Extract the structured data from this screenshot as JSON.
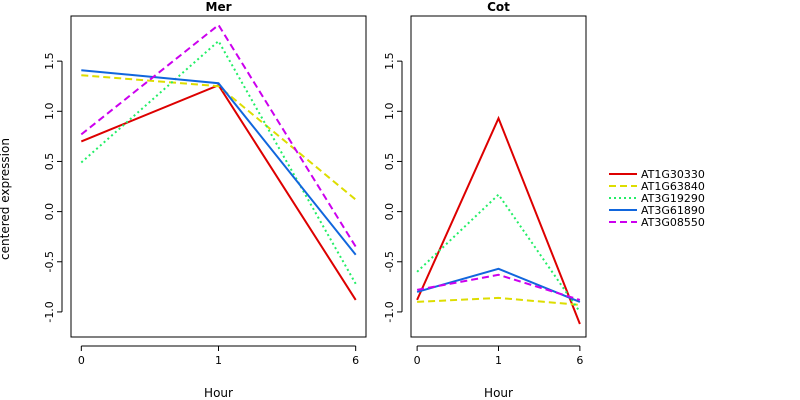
{
  "chart_data": {
    "type": "line",
    "ylabel": "centered expression",
    "xlabel": "Hour",
    "x": [
      "0",
      "1",
      "6"
    ],
    "ylim": [
      -1.25,
      1.95
    ],
    "yticks": [
      "-1.0",
      "-0.5",
      "0.0",
      "0.5",
      "1.0",
      "1.5"
    ],
    "grid": false,
    "legend_position": "right",
    "series": [
      {
        "name": "AT1G30330",
        "color": "#dd0000",
        "dash": "solid"
      },
      {
        "name": "AT1G63840",
        "color": "#dddd00",
        "dash": "dashed"
      },
      {
        "name": "AT3G19290",
        "color": "#22ee66",
        "dash": "dotted"
      },
      {
        "name": "AT3G61890",
        "color": "#1166dd",
        "dash": "solid"
      },
      {
        "name": "AT3G08550",
        "color": "#cc00ee",
        "dash": "dashed"
      }
    ],
    "panels": [
      {
        "title": "Mer",
        "values": [
          [
            0.7,
            1.26,
            -0.88
          ],
          [
            1.36,
            1.25,
            0.12
          ],
          [
            0.49,
            1.7,
            -0.72
          ],
          [
            1.41,
            1.28,
            -0.43
          ],
          [
            0.77,
            1.86,
            -0.35
          ]
        ]
      },
      {
        "title": "Cot",
        "values": [
          [
            -0.88,
            0.93,
            -1.12
          ],
          [
            -0.9,
            -0.86,
            -0.93
          ],
          [
            -0.6,
            0.17,
            -1.0
          ],
          [
            -0.8,
            -0.57,
            -0.9
          ],
          [
            -0.78,
            -0.63,
            -0.88
          ]
        ]
      }
    ]
  }
}
